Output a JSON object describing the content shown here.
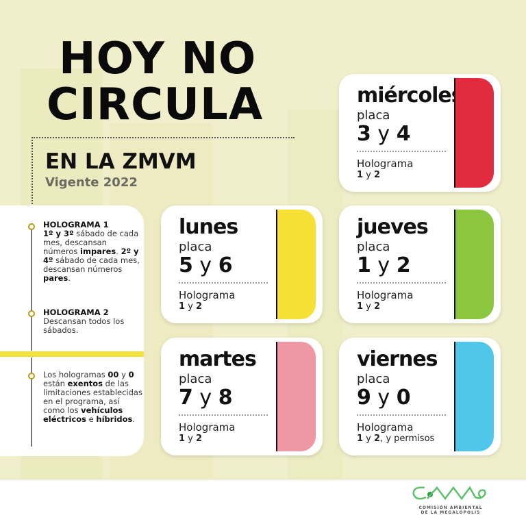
{
  "title": {
    "line1": "HOY NO",
    "line2": "CIRCULA",
    "line3": "EN LA ZMVM",
    "subtitle": "Vigente 2022"
  },
  "notes": [
    {
      "heading": "HOLOGRAMA 1",
      "segments": [
        [
          "1º y 3º",
          true
        ],
        [
          " sábado de cada mes, descansan números ",
          false
        ],
        [
          "impares",
          true
        ],
        [
          ". ",
          false
        ],
        [
          "2º y 4º",
          true
        ],
        [
          " sábado de cada mes, descansan números ",
          false
        ],
        [
          "pares",
          true
        ],
        [
          ".",
          false
        ]
      ]
    },
    {
      "heading": "HOLOGRAMA 2",
      "segments": [
        [
          "Descansan todos los sábados.",
          false
        ]
      ]
    },
    {
      "heading": "",
      "segments": [
        [
          "Los hologramas ",
          false
        ],
        [
          "00",
          true
        ],
        [
          " y ",
          false
        ],
        [
          "0",
          true
        ],
        [
          " están ",
          false
        ],
        [
          "exentos",
          true
        ],
        [
          " de las limitaciones establecidas en el programa, así como los ",
          false
        ],
        [
          "vehículos eléctricos",
          true
        ],
        [
          " e ",
          false
        ],
        [
          "híbridos",
          true
        ],
        [
          ".",
          false
        ]
      ]
    }
  ],
  "cards": [
    {
      "day": "miércoles",
      "placa_label": "placa",
      "plates": [
        "3",
        "4"
      ],
      "holo_label": "Holograma",
      "holo": [
        [
          "1",
          true
        ],
        [
          " y ",
          false
        ],
        [
          "2",
          true
        ]
      ],
      "color": "#e22b3f"
    },
    {
      "day": "lunes",
      "placa_label": "placa",
      "plates": [
        "5",
        "6"
      ],
      "holo_label": "Holograma",
      "holo": [
        [
          "1",
          true
        ],
        [
          " y ",
          false
        ],
        [
          "2",
          true
        ]
      ],
      "color": "#f6e035"
    },
    {
      "day": "jueves",
      "placa_label": "placa",
      "plates": [
        "1",
        "2"
      ],
      "holo_label": "Holograma",
      "holo": [
        [
          "1",
          true
        ],
        [
          " y ",
          false
        ],
        [
          "2",
          true
        ]
      ],
      "color": "#8cc63f"
    },
    {
      "day": "martes",
      "placa_label": "placa",
      "plates": [
        "7",
        "8"
      ],
      "holo_label": "Holograma",
      "holo": [
        [
          "1",
          true
        ],
        [
          " y ",
          false
        ],
        [
          "2",
          true
        ]
      ],
      "color": "#f097a6"
    },
    {
      "day": "viernes",
      "placa_label": "placa",
      "plates": [
        "9",
        "0"
      ],
      "holo_label": "Holograma",
      "holo": [
        [
          "1",
          true
        ],
        [
          " y ",
          false
        ],
        [
          "2",
          true
        ],
        [
          ", y permisos",
          false
        ]
      ],
      "color": "#4fc6ea"
    }
  ],
  "plate_joiner": " y ",
  "logo": {
    "mark": "CAMe",
    "line1": "COMISIÓN AMBIENTAL",
    "line2": "DE LA MEGALÓPOLIS",
    "color": "#5cc06a"
  }
}
